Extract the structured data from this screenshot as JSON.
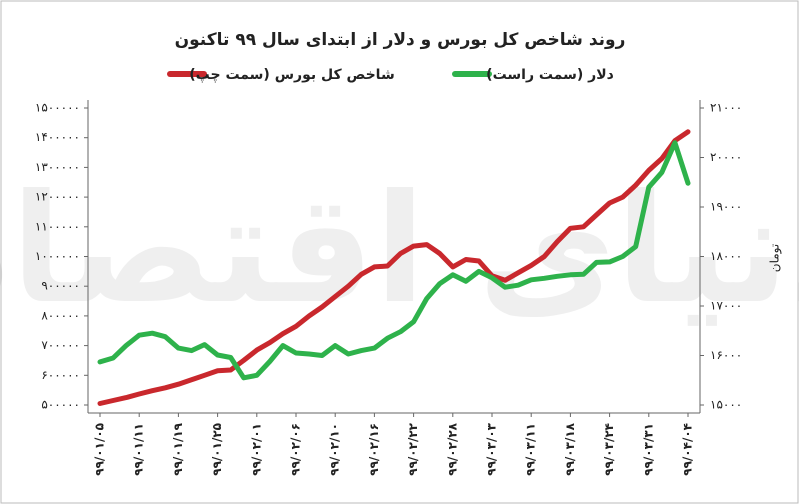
{
  "chart_data": {
    "type": "line",
    "title": "روند شاخص کل بورس و دلار از ابتدای سال ۹۹ تاکنون",
    "watermark": "دنیای اقتصاد",
    "y2_label": "تومان",
    "categories": [
      "۹۹/۰۱/۰۵",
      null,
      null,
      "۹۹/۰۱/۱۱",
      null,
      null,
      "۹۹/۰۱/۱۹",
      null,
      null,
      "۹۹/۰۱/۲۵",
      null,
      null,
      "۹۹/۰۲/۰۱",
      null,
      null,
      "۹۹/۰۲/۰۶",
      null,
      null,
      "۹۹/۰۲/۱۰",
      null,
      null,
      "۹۹/۰۲/۱۶",
      null,
      null,
      "۹۹/۰۲/۲۲",
      null,
      null,
      "۹۹/۰۲/۲۸",
      null,
      null,
      "۹۹/۰۳/۰۳",
      null,
      null,
      "۹۹/۰۳/۱۱",
      null,
      null,
      "۹۹/۰۳/۱۸",
      null,
      null,
      "۹۹/۰۳/۲۴",
      null,
      null,
      "۹۹/۰۳/۳۱",
      null,
      null,
      "۹۹/۰۴/۰۴"
    ],
    "series": [
      {
        "name": "شاخص کل بورس (سمت چپ)",
        "color": "#c9282d",
        "values": [
          505000,
          515000,
          525000,
          537000,
          548000,
          558000,
          570000,
          585000,
          600000,
          615000,
          618000,
          650000,
          685000,
          710000,
          740000,
          765000,
          800000,
          830000,
          865000,
          900000,
          940000,
          965000,
          968000,
          1010000,
          1035000,
          1040000,
          1010000,
          965000,
          990000,
          985000,
          935000,
          920000,
          945000,
          970000,
          1000000,
          1050000,
          1095000,
          1100000,
          1140000,
          1180000,
          1200000,
          1240000,
          1290000,
          1330000,
          1390000,
          1420000
        ]
      },
      {
        "name": "دلار (سمت راست)",
        "color": "#2eb24b",
        "axis": "y2",
        "values": [
          15870,
          15950,
          16200,
          16410,
          16450,
          16380,
          16150,
          16100,
          16220,
          16010,
          15960,
          15550,
          15600,
          15880,
          16200,
          16050,
          16030,
          16000,
          16200,
          16030,
          16100,
          16150,
          16350,
          16480,
          16680,
          17150,
          17450,
          17630,
          17500,
          17700,
          17570,
          17380,
          17420,
          17530,
          17560,
          17600,
          17630,
          17640,
          17880,
          17890,
          18000,
          18200,
          19400,
          19700,
          20300,
          19480
        ]
      }
    ],
    "ylim": [
      500000,
      1500000
    ],
    "yticks": [
      {
        "value": 500000,
        "label": "۵۰۰۰۰۰"
      },
      {
        "value": 600000,
        "label": "۶۰۰۰۰۰"
      },
      {
        "value": 700000,
        "label": "۷۰۰۰۰۰"
      },
      {
        "value": 800000,
        "label": "۸۰۰۰۰۰"
      },
      {
        "value": 900000,
        "label": "۹۰۰۰۰۰"
      },
      {
        "value": 1000000,
        "label": "۱۰۰۰۰۰۰"
      },
      {
        "value": 1100000,
        "label": "۱۱۰۰۰۰۰"
      },
      {
        "value": 1200000,
        "label": "۱۲۰۰۰۰۰"
      },
      {
        "value": 1300000,
        "label": "۱۳۰۰۰۰۰"
      },
      {
        "value": 1400000,
        "label": "۱۴۰۰۰۰۰"
      },
      {
        "value": 1500000,
        "label": "۱۵۰۰۰۰۰"
      }
    ],
    "y2lim": [
      15000,
      21000
    ],
    "y2ticks": [
      {
        "value": 15000,
        "label": "۱۵۰۰۰"
      },
      {
        "value": 16000,
        "label": "۱۶۰۰۰"
      },
      {
        "value": 17000,
        "label": "۱۷۰۰۰"
      },
      {
        "value": 18000,
        "label": "۱۸۰۰۰"
      },
      {
        "value": 19000,
        "label": "۱۹۰۰۰"
      },
      {
        "value": 20000,
        "label": "۲۰۰۰۰"
      },
      {
        "value": 21000,
        "label": "۲۱۰۰۰"
      }
    ],
    "grid": false
  }
}
